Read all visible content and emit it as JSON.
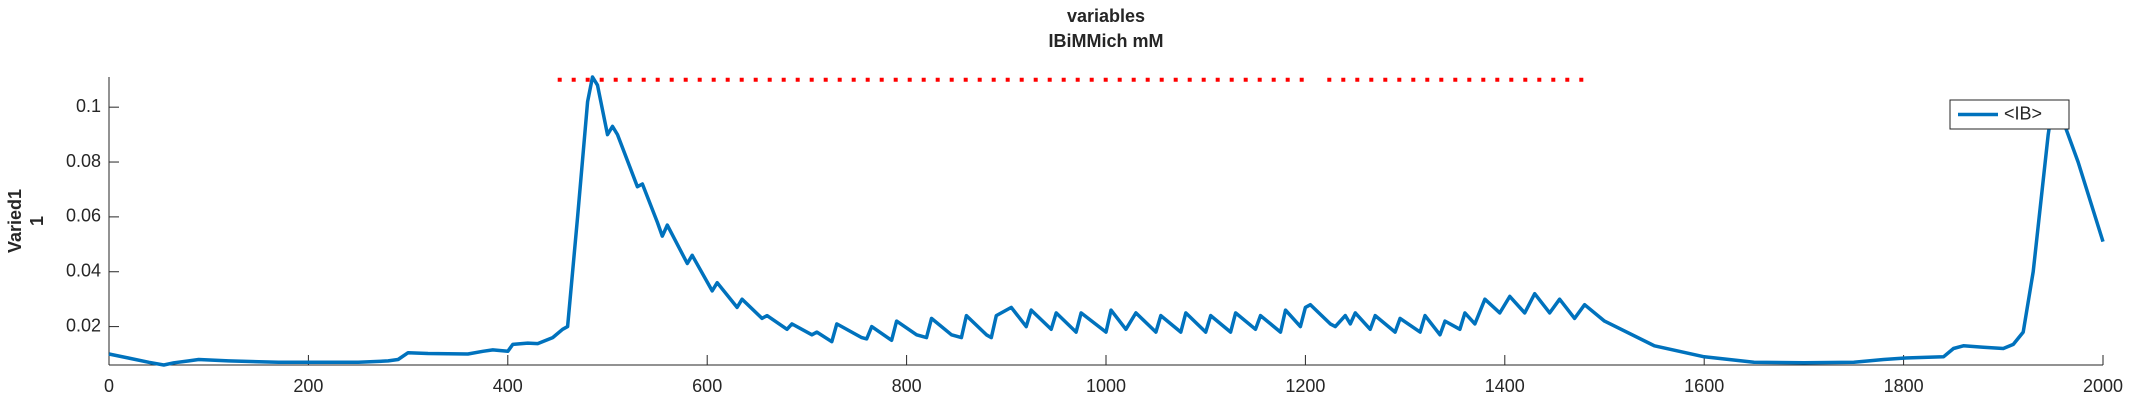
{
  "chart_data": {
    "type": "line",
    "title": [
      "variables",
      "IBiMMich mM"
    ],
    "ylabel": [
      "Varied1",
      "1"
    ],
    "xlim": [
      0,
      2000
    ],
    "xticks": [
      0,
      200,
      400,
      600,
      800,
      1000,
      1200,
      1400,
      1600,
      1800,
      2000
    ],
    "ylim": [
      0.006,
      0.111
    ],
    "yticks": [
      0.02,
      0.04,
      0.06,
      0.08,
      0.1
    ],
    "legend": "northeast",
    "series": [
      {
        "name": "<IB>",
        "color": "#0072bd",
        "style": "solid",
        "x": [
          0,
          20,
          40,
          55,
          65,
          80,
          90,
          120,
          170,
          250,
          280,
          290,
          300,
          320,
          360,
          375,
          385,
          400,
          405,
          420,
          430,
          445,
          455,
          460,
          470,
          480,
          485,
          490,
          500,
          505,
          510,
          530,
          535,
          550,
          555,
          560,
          580,
          585,
          605,
          610,
          630,
          635,
          655,
          660,
          680,
          685,
          705,
          710,
          725,
          730,
          755,
          760,
          765,
          785,
          790,
          810,
          820,
          825,
          845,
          855,
          860,
          880,
          885,
          890,
          905,
          920,
          925,
          945,
          950,
          970,
          975,
          1000,
          1005,
          1020,
          1030,
          1050,
          1055,
          1075,
          1080,
          1100,
          1105,
          1125,
          1130,
          1150,
          1155,
          1175,
          1180,
          1195,
          1200,
          1205,
          1225,
          1230,
          1240,
          1245,
          1250,
          1265,
          1270,
          1290,
          1295,
          1315,
          1320,
          1335,
          1340,
          1355,
          1360,
          1370,
          1380,
          1395,
          1405,
          1420,
          1430,
          1445,
          1455,
          1470,
          1480,
          1500,
          1550,
          1600,
          1650,
          1700,
          1750,
          1780,
          1800,
          1840,
          1850,
          1860,
          1880,
          1900,
          1910,
          1920,
          1930,
          1945,
          1950,
          1960,
          1975,
          2000
        ],
        "values": [
          0.01,
          0.0085,
          0.007,
          0.006,
          0.0068,
          0.0075,
          0.008,
          0.0075,
          0.007,
          0.007,
          0.0075,
          0.008,
          0.0105,
          0.0102,
          0.01,
          0.011,
          0.0115,
          0.011,
          0.0135,
          0.014,
          0.0138,
          0.016,
          0.019,
          0.02,
          0.06,
          0.102,
          0.111,
          0.108,
          0.09,
          0.093,
          0.09,
          0.071,
          0.072,
          0.058,
          0.053,
          0.057,
          0.043,
          0.046,
          0.033,
          0.036,
          0.027,
          0.03,
          0.023,
          0.024,
          0.019,
          0.021,
          0.017,
          0.018,
          0.0145,
          0.021,
          0.016,
          0.0155,
          0.02,
          0.015,
          0.022,
          0.017,
          0.016,
          0.023,
          0.017,
          0.016,
          0.024,
          0.017,
          0.016,
          0.024,
          0.027,
          0.02,
          0.026,
          0.019,
          0.025,
          0.018,
          0.025,
          0.018,
          0.026,
          0.019,
          0.025,
          0.018,
          0.024,
          0.018,
          0.025,
          0.018,
          0.024,
          0.018,
          0.025,
          0.019,
          0.024,
          0.018,
          0.026,
          0.02,
          0.027,
          0.028,
          0.021,
          0.02,
          0.024,
          0.021,
          0.025,
          0.019,
          0.024,
          0.018,
          0.023,
          0.018,
          0.024,
          0.017,
          0.022,
          0.019,
          0.025,
          0.021,
          0.03,
          0.025,
          0.031,
          0.025,
          0.032,
          0.025,
          0.03,
          0.023,
          0.028,
          0.022,
          0.013,
          0.009,
          0.007,
          0.0068,
          0.007,
          0.008,
          0.0085,
          0.009,
          0.012,
          0.013,
          0.0125,
          0.012,
          0.0135,
          0.018,
          0.04,
          0.09,
          0.102,
          0.095,
          0.08,
          0.051
        ]
      },
      {
        "color": "#ff0000",
        "style": "dotted",
        "x": [
          450,
          1205,
          1212,
          1222,
          1480
        ],
        "values": [
          0.11,
          0.11,
          null,
          0.11,
          0.11
        ]
      }
    ]
  }
}
